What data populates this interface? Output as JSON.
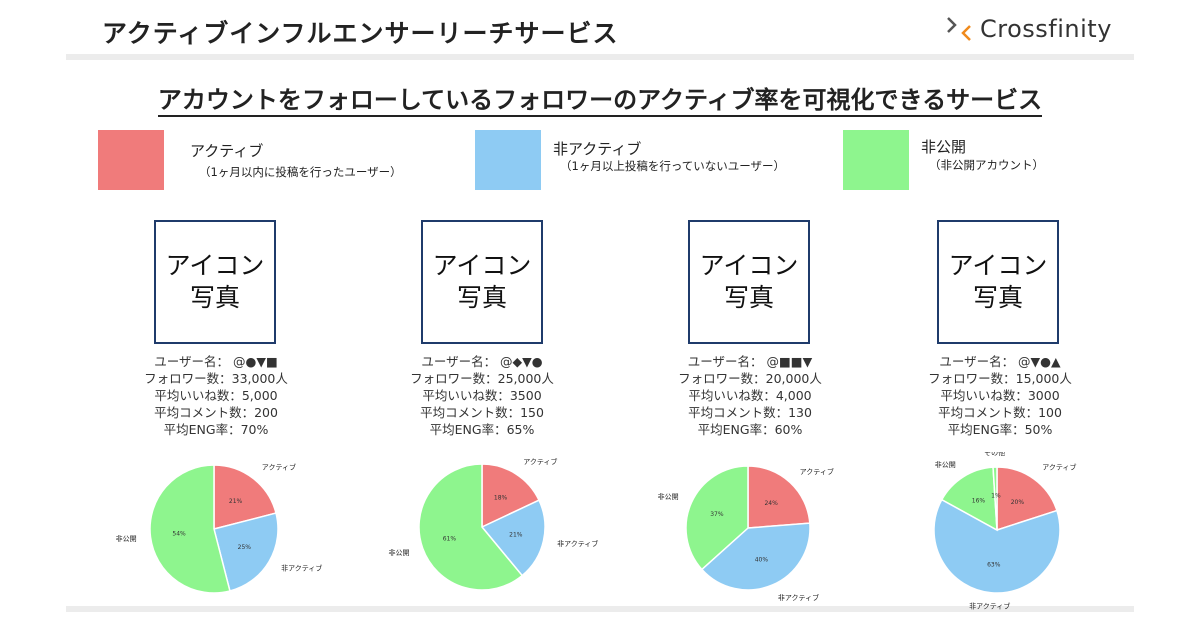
{
  "header": {
    "title": "アクティブインフルエンサーリーチサービス",
    "logo_text": "Crossfinity"
  },
  "main_title": "アカウントをフォローしているフォロワーのアクティブ率を可視化できるサービス",
  "colors": {
    "active": "#f07b7b",
    "inactive": "#8ecbf3",
    "private": "#8ef58e"
  },
  "legend": [
    {
      "label": "アクティブ",
      "desc": "（1ヶ月以内に投稿を行ったユーザー）"
    },
    {
      "label": "非アクティブ",
      "desc": "（1ヶ月以上投稿を行っていないユーザー）"
    },
    {
      "label": "非公開",
      "desc": "（非公開アカウント）"
    }
  ],
  "icon_placeholder": {
    "line1": "アイコン",
    "line2": "写真"
  },
  "accounts": [
    {
      "user": "ユーザー名： @●▼■",
      "followers": "フォロワー数：33,000人",
      "likes": "平均いいね数：5,000",
      "comments": "平均コメント数：200",
      "eng": "平均ENG率：70%"
    },
    {
      "user": "ユーザー名： @◆▼●",
      "followers": "フォロワー数：25,000人",
      "likes": "平均いいね数：3500",
      "comments": "平均コメント数：150",
      "eng": "平均ENG率：65%"
    },
    {
      "user": "ユーザー名： @■■▼",
      "followers": "フォロワー数：20,000人",
      "likes": "平均いいね数：4,000",
      "comments": "平均コメント数：130",
      "eng": "平均ENG率：60%"
    },
    {
      "user": "ユーザー名： @▼●▲",
      "followers": "フォロワー数：15,000人",
      "likes": "平均いいね数：3000",
      "comments": "平均コメント数：100",
      "eng": "平均ENG率：50%"
    }
  ],
  "chart_data": [
    {
      "type": "pie",
      "slices": [
        {
          "name": "アクティブ",
          "value": 21,
          "label": "21%",
          "color": "#f07b7b"
        },
        {
          "name": "非アクティブ",
          "value": 25,
          "label": "25%",
          "color": "#8ecbf3"
        },
        {
          "name": "非公開",
          "value": 54,
          "label": "54%",
          "color": "#8ef58e"
        }
      ]
    },
    {
      "type": "pie",
      "slices": [
        {
          "name": "アクティブ",
          "value": 18,
          "label": "18%",
          "color": "#f07b7b"
        },
        {
          "name": "非アクティブ",
          "value": 21,
          "label": "21%",
          "color": "#8ecbf3"
        },
        {
          "name": "非公開",
          "value": 61,
          "label": "61%",
          "color": "#8ef58e"
        }
      ]
    },
    {
      "type": "pie",
      "slices": [
        {
          "name": "アクティブ",
          "value": 24,
          "label": "24%",
          "color": "#f07b7b"
        },
        {
          "name": "非アクティブ",
          "value": 40,
          "label": "40%",
          "color": "#8ecbf3"
        },
        {
          "name": "非公開",
          "value": 37,
          "label": "37%",
          "color": "#8ef58e"
        }
      ]
    },
    {
      "type": "pie",
      "slices": [
        {
          "name": "アクティブ",
          "value": 20,
          "label": "20%",
          "color": "#f07b7b"
        },
        {
          "name": "非アクティブ",
          "value": 63,
          "label": "63%",
          "color": "#8ecbf3"
        },
        {
          "name": "非公開",
          "value": 16,
          "label": "16%",
          "color": "#8ef58e"
        },
        {
          "name": "その他",
          "value": 1,
          "label": "1%",
          "color": "#8ef58e"
        }
      ]
    }
  ]
}
